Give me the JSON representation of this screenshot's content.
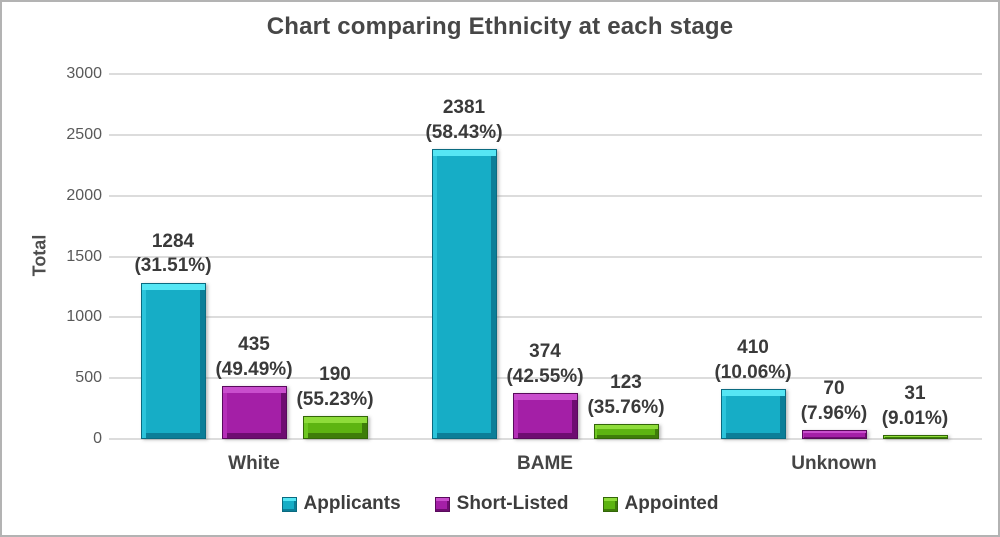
{
  "chart_data": {
    "type": "bar",
    "title": "Chart comparing Ethnicity at each stage",
    "ylabel": "Total",
    "xlabel": "",
    "ylim": [
      0,
      3000
    ],
    "yticks": [
      0,
      500,
      1000,
      1500,
      2000,
      2500,
      3000
    ],
    "grid": true,
    "grid_color": "#dcdcdc",
    "legend_position": "bottom",
    "categories": [
      "White",
      "BAME",
      "Unknown"
    ],
    "series": [
      {
        "name": "Applicants",
        "values": [
          1284,
          2381,
          410
        ],
        "pct_labels": [
          "(31.51%)",
          "(58.43%)",
          "(10.06%)"
        ],
        "color": {
          "main": "#16ADC6",
          "light": "#55E6F4",
          "mid": "#2BC4DB",
          "dark": "#0B7E98",
          "outline": "#0A6A80"
        }
      },
      {
        "name": "Short-Listed",
        "values": [
          435,
          374,
          70
        ],
        "pct_labels": [
          "(49.49%)",
          "(42.55%)",
          "(7.96%)"
        ],
        "color": {
          "main": "#A41FA7",
          "light": "#C94ECD",
          "mid": "#B52FB8",
          "dark": "#6E0D71",
          "outline": "#590A5C"
        }
      },
      {
        "name": "Appointed",
        "values": [
          190,
          123,
          31
        ],
        "pct_labels": [
          "(55.23%)",
          "(35.76%)",
          "(9.01%)"
        ],
        "color": {
          "main": "#5DB411",
          "light": "#8EDC3A",
          "mid": "#6EC722",
          "dark": "#3E7D09",
          "outline": "#336608"
        }
      }
    ]
  }
}
